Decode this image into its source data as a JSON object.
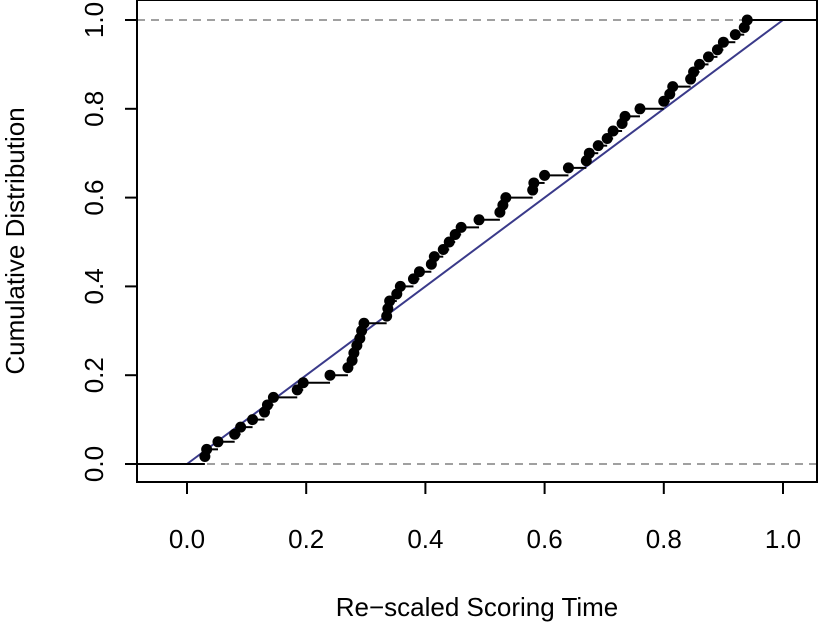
{
  "chart_data": {
    "type": "scatter",
    "title": "",
    "xlabel": "Re−scaled Scoring Time",
    "ylabel": "Cumulative Distribution",
    "xlim": [
      -0.08,
      1.05
    ],
    "ylim": [
      -0.04,
      1.04
    ],
    "x_ticks": [
      "0.0",
      "0.2",
      "0.4",
      "0.6",
      "0.8",
      "1.0"
    ],
    "y_ticks": [
      "0.0",
      "0.2",
      "0.4",
      "0.6",
      "0.8",
      "1.0"
    ],
    "reference_lines": {
      "y": [
        0,
        1
      ],
      "style": "dashed",
      "color": "#a0a0a0"
    },
    "uniform_cdf_line": {
      "from": [
        0,
        0
      ],
      "to": [
        1,
        1
      ],
      "color": "#3a3a8a"
    },
    "ecdf_color": "#000000",
    "point_color": "#000000",
    "x": [
      0.03,
      0.033,
      0.052,
      0.08,
      0.09,
      0.11,
      0.13,
      0.135,
      0.145,
      0.185,
      0.195,
      0.24,
      0.27,
      0.277,
      0.28,
      0.285,
      0.29,
      0.293,
      0.297,
      0.335,
      0.337,
      0.34,
      0.352,
      0.358,
      0.38,
      0.39,
      0.41,
      0.415,
      0.43,
      0.44,
      0.45,
      0.46,
      0.49,
      0.525,
      0.53,
      0.535,
      0.58,
      0.582,
      0.6,
      0.64,
      0.67,
      0.675,
      0.69,
      0.705,
      0.715,
      0.73,
      0.735,
      0.76,
      0.8,
      0.81,
      0.815,
      0.845,
      0.85,
      0.86,
      0.875,
      0.89,
      0.9,
      0.92,
      0.935,
      0.94
    ],
    "y": [
      0.017,
      0.033,
      0.05,
      0.067,
      0.083,
      0.1,
      0.117,
      0.133,
      0.15,
      0.167,
      0.183,
      0.2,
      0.217,
      0.233,
      0.25,
      0.267,
      0.283,
      0.3,
      0.317,
      0.333,
      0.35,
      0.367,
      0.383,
      0.4,
      0.417,
      0.433,
      0.45,
      0.467,
      0.483,
      0.5,
      0.517,
      0.533,
      0.55,
      0.567,
      0.583,
      0.6,
      0.617,
      0.633,
      0.65,
      0.667,
      0.683,
      0.7,
      0.717,
      0.733,
      0.75,
      0.767,
      0.783,
      0.8,
      0.817,
      0.833,
      0.85,
      0.867,
      0.883,
      0.9,
      0.917,
      0.933,
      0.95,
      0.967,
      0.983,
      1.0
    ]
  }
}
